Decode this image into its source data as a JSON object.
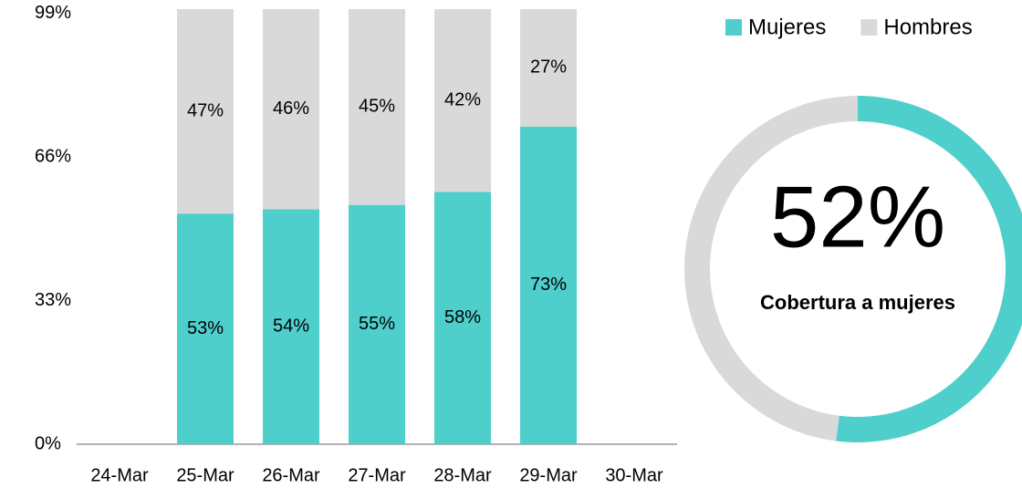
{
  "chart_data": [
    {
      "type": "bar",
      "stacked": true,
      "categories": [
        "24-Mar",
        "25-Mar",
        "26-Mar",
        "27-Mar",
        "28-Mar",
        "29-Mar",
        "30-Mar"
      ],
      "series": [
        {
          "name": "Mujeres",
          "color": "#4ecfcc",
          "values": [
            null,
            53,
            54,
            55,
            58,
            73,
            null
          ],
          "value_labels": [
            null,
            "53%",
            "54%",
            "55%",
            "58%",
            "73%",
            null
          ]
        },
        {
          "name": "Hombres",
          "color": "#d9d9d9",
          "values": [
            null,
            47,
            46,
            45,
            42,
            27,
            null
          ],
          "value_labels": [
            null,
            "47%",
            "46%",
            "45%",
            "42%",
            "27%",
            null
          ]
        }
      ],
      "ylim": [
        0,
        100
      ],
      "yticks": [
        {
          "value": 0,
          "label": "0%"
        },
        {
          "value": 33,
          "label": "33%"
        },
        {
          "value": 66,
          "label": "66%"
        },
        {
          "value": 99,
          "label": "99%"
        }
      ],
      "grid": false,
      "legend": "top-right"
    },
    {
      "type": "donut",
      "values": [
        52,
        48
      ],
      "value_labels": [
        "52%",
        null
      ],
      "colors": [
        "#4ecfcc",
        "#d9d9d9"
      ],
      "subtitle": "Cobertura a mujeres"
    }
  ]
}
